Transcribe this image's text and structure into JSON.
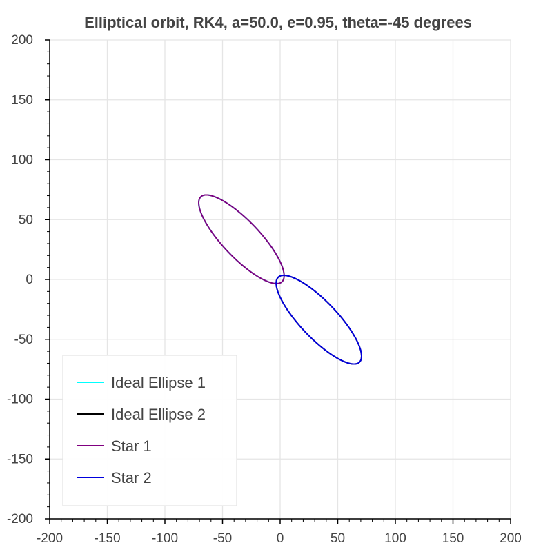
{
  "chart_data": {
    "type": "line",
    "title": "Elliptical orbit, RK4, a=50.0, e=0.95, theta=-45 degrees",
    "xlabel": "",
    "ylabel": "",
    "xlim": [
      -200,
      200
    ],
    "ylim": [
      -200,
      200
    ],
    "x_ticks": [
      -200,
      -150,
      -100,
      -50,
      0,
      50,
      100,
      150,
      200
    ],
    "y_ticks": [
      -200,
      -150,
      -100,
      -50,
      0,
      50,
      100,
      150,
      200
    ],
    "grid": true,
    "legend_position": "bottom-left",
    "orbit": {
      "a": 50.0,
      "e": 0.95,
      "theta_deg": -45
    },
    "series": [
      {
        "name": "Ideal Ellipse 1",
        "color": "#00ffff",
        "center": [
          -33.6,
          33.6
        ],
        "periapsis_sign": 1
      },
      {
        "name": "Ideal Ellipse 2",
        "color": "#000000",
        "center": [
          33.6,
          -33.6
        ],
        "periapsis_sign": -1
      },
      {
        "name": "Star 1",
        "color": "#800080",
        "center": [
          -33.6,
          33.6
        ],
        "periapsis_sign": 1
      },
      {
        "name": "Star 2",
        "color": "#0000dd",
        "center": [
          33.6,
          -33.6
        ],
        "periapsis_sign": -1
      }
    ]
  }
}
